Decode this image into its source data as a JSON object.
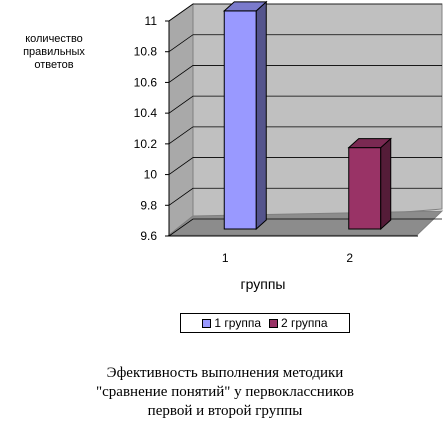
{
  "chart_data": {
    "type": "bar",
    "categories": [
      "1",
      "2"
    ],
    "series": [
      {
        "name": "1 группа",
        "values": [
          11.02,
          null
        ],
        "color": "#9999FF"
      },
      {
        "name": "2 группа",
        "values": [
          null,
          10.13
        ],
        "color": "#993366"
      }
    ],
    "ylabel": "количество правильных ответов",
    "xlabel": "группы",
    "ylim": [
      9.6,
      11
    ],
    "yticks": [
      "11",
      "10.8",
      "10.6",
      "10.4",
      "10.2",
      "10",
      "9.8",
      "9.6"
    ],
    "legend_position": "bottom",
    "grid": true,
    "three_d": true,
    "wall_color": "#C0C0C0"
  },
  "caption": {
    "line1": "Эфективность выполнения методики",
    "line2": "\"сравнение понятий\" у первоклассников",
    "line3": "первой и второй группы"
  }
}
